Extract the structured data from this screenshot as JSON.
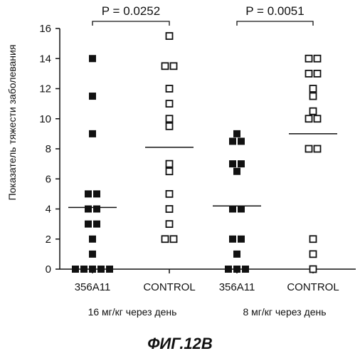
{
  "chart_data": {
    "type": "scatter",
    "ylabel": "Показатель тяжести заболевания",
    "ylim": [
      0,
      16
    ],
    "yticks": [
      "0",
      "2",
      "4",
      "6",
      "8",
      "10",
      "12",
      "14",
      "16"
    ],
    "categories": [
      "356A11",
      "CONTROL",
      "356A11",
      "CONTROL"
    ],
    "series": [
      {
        "category": "356A11",
        "marker": "filled-square",
        "mean": 4.1,
        "values": [
          14,
          11.5,
          9,
          5,
          5,
          4,
          4,
          3,
          3,
          2,
          1,
          0,
          0,
          0,
          0,
          0
        ]
      },
      {
        "category": "CONTROL",
        "marker": "open-square",
        "mean": 8.1,
        "values": [
          15.5,
          13.5,
          13.5,
          12,
          11,
          10,
          9.5,
          7,
          6.5,
          5,
          4,
          3,
          2,
          2
        ]
      },
      {
        "category": "356A11",
        "marker": "filled-square",
        "mean": 4.2,
        "values": [
          9,
          8.5,
          8.5,
          7,
          7,
          6.5,
          4,
          4,
          2,
          2,
          1,
          0,
          0,
          0
        ]
      },
      {
        "category": "CONTROL",
        "marker": "open-square",
        "mean": 9.0,
        "values": [
          14,
          14,
          13,
          13,
          12,
          11.5,
          10.5,
          10,
          10,
          8,
          8,
          2,
          1,
          0
        ]
      }
    ],
    "comparisons": [
      {
        "label": "P = 0.0252"
      },
      {
        "label": "P = 0.0051"
      }
    ],
    "groups": [
      "16 мг/кг через день",
      "8 мг/кг через день"
    ]
  },
  "caption": "ФИГ.12В",
  "colors": {
    "ink": "#111111",
    "background": "#ffffff"
  }
}
